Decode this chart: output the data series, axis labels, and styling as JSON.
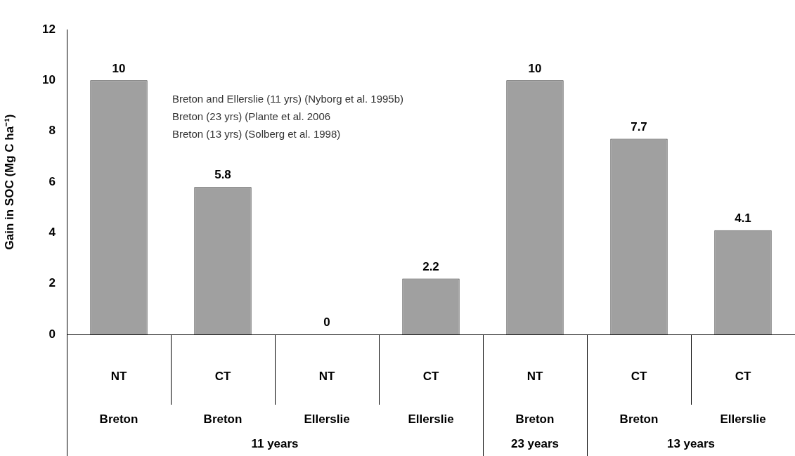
{
  "chart_data": {
    "type": "bar",
    "ylabel": "Gain in SOC (Mg C ha⁻¹)",
    "categories": [
      "NT\nBreton",
      "CT\nBreton",
      "NT\nEllerslie",
      "CT\nEllerslie",
      "NT\nBreton",
      "CT\nBreton",
      "CT\nEllerslie"
    ],
    "values": [
      10,
      5.8,
      0,
      2.2,
      10,
      7.7,
      4.1
    ],
    "color": "#a0a0a0",
    "ylim": [
      0,
      12
    ],
    "yticks": [
      0,
      2,
      4,
      6,
      8,
      10,
      12
    ],
    "grid": false,
    "legend": false,
    "data_labels": true,
    "annotations": [
      "Breton and Ellerslie (11 yrs) (Nyborg et al. 1995b)",
      "Breton (23 yrs) (Plante et al. 2006",
      "Breton (13 yrs) (Solberg et al. 1998)",
      "11 years",
      "23 years",
      "13 years"
    ]
  }
}
